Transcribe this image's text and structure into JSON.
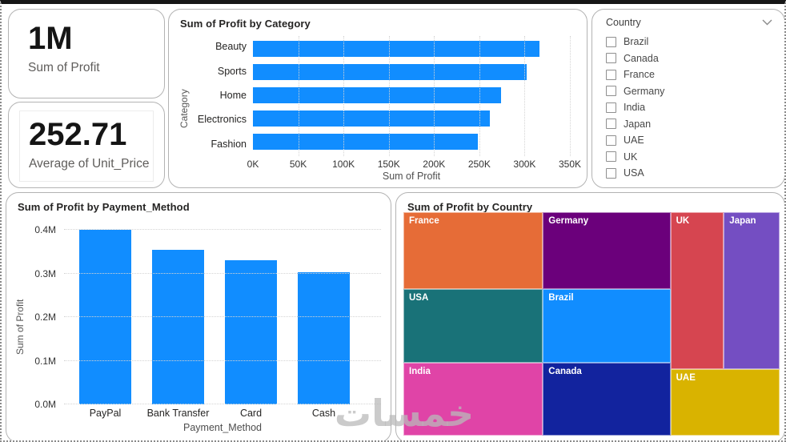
{
  "cards": [
    {
      "value": "1M",
      "label": "Sum of Profit"
    },
    {
      "value": "252.71",
      "label": "Average of Unit_Price"
    }
  ],
  "slicer": {
    "title": "Country",
    "items": [
      {
        "label": "Brazil",
        "checked": false
      },
      {
        "label": "Canada",
        "checked": false
      },
      {
        "label": "France",
        "checked": false
      },
      {
        "label": "Germany",
        "checked": false
      },
      {
        "label": "India",
        "checked": false
      },
      {
        "label": "Japan",
        "checked": false
      },
      {
        "label": "UAE",
        "checked": false
      },
      {
        "label": "UK",
        "checked": false
      },
      {
        "label": "USA",
        "checked": false
      }
    ]
  },
  "chart_data": [
    {
      "id": "profit_by_category",
      "type": "bar",
      "orientation": "horizontal",
      "title": "Sum of Profit by Category",
      "categories": [
        "Beauty",
        "Sports",
        "Home",
        "Electronics",
        "Fashion"
      ],
      "values": [
        316000,
        302000,
        274000,
        262000,
        248000
      ],
      "xlabel": "Sum of Profit",
      "ylabel": "Category",
      "xlim": [
        0,
        350000
      ],
      "xticks": {
        "values": [
          0,
          50000,
          100000,
          150000,
          200000,
          250000,
          300000,
          350000
        ],
        "labels": [
          "0K",
          "50K",
          "100K",
          "150K",
          "200K",
          "250K",
          "300K",
          "350K"
        ]
      },
      "bar_color": "#118DFF",
      "grid": "dotted-vertical"
    },
    {
      "id": "profit_by_payment_method",
      "type": "bar",
      "orientation": "vertical",
      "title": "Sum of Profit by Payment_Method",
      "categories": [
        "PayPal",
        "Bank Transfer",
        "Card",
        "Cash"
      ],
      "values": [
        400000,
        355000,
        330000,
        303000
      ],
      "xlabel": "Payment_Method",
      "ylabel": "Sum of Profit",
      "ylim": [
        0,
        430000
      ],
      "yticks": {
        "values": [
          0,
          100000,
          200000,
          300000,
          400000
        ],
        "labels": [
          "0.0M",
          "0.1M",
          "0.2M",
          "0.3M",
          "0.4M"
        ]
      },
      "bar_color": "#118DFF",
      "grid": "dotted-horizontal"
    },
    {
      "id": "profit_by_country",
      "type": "treemap",
      "title": "Sum of Profit by Country",
      "tiles": [
        {
          "label": "France",
          "color": "#E66C37",
          "rect": {
            "x": 0,
            "y": 0,
            "w": 37.08,
            "h": 34.4
          }
        },
        {
          "label": "Germany",
          "color": "#6B007B",
          "rect": {
            "x": 37.08,
            "y": 0,
            "w": 33.9,
            "h": 34.4
          }
        },
        {
          "label": "UK",
          "color": "#D64550",
          "rect": {
            "x": 70.98,
            "y": 0,
            "w": 14.19,
            "h": 70.2
          }
        },
        {
          "label": "Japan",
          "color": "#744EC2",
          "rect": {
            "x": 85.17,
            "y": 0,
            "w": 14.83,
            "h": 70.2
          }
        },
        {
          "label": "USA",
          "color": "#197278",
          "rect": {
            "x": 0,
            "y": 34.4,
            "w": 37.08,
            "h": 33.0
          }
        },
        {
          "label": "Brazil",
          "color": "#118DFF",
          "rect": {
            "x": 37.08,
            "y": 34.4,
            "w": 33.9,
            "h": 33.0
          }
        },
        {
          "label": "India",
          "color": "#E044A7",
          "rect": {
            "x": 0,
            "y": 67.4,
            "w": 37.08,
            "h": 32.6
          }
        },
        {
          "label": "Canada",
          "color": "#12239E",
          "rect": {
            "x": 37.08,
            "y": 67.4,
            "w": 33.9,
            "h": 32.6
          }
        },
        {
          "label": "UAE",
          "color": "#D9B300",
          "rect": {
            "x": 70.98,
            "y": 70.2,
            "w": 29.02,
            "h": 29.8
          }
        }
      ]
    }
  ],
  "watermark": "خمسات"
}
